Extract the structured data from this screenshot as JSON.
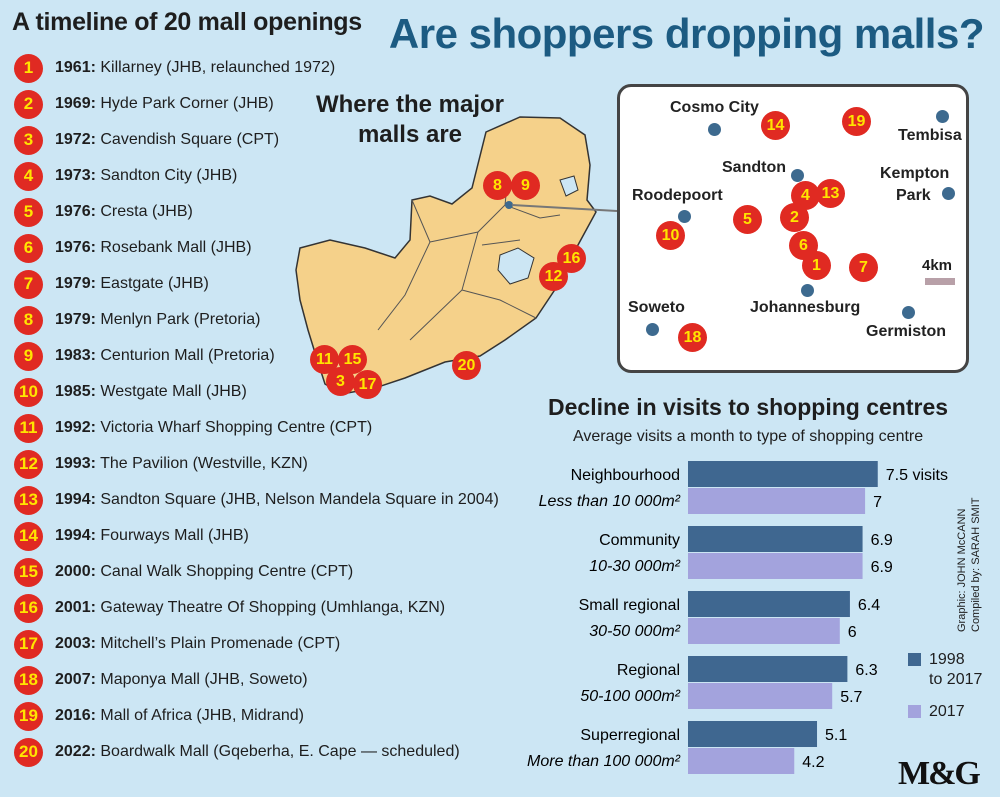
{
  "main_title": "Are shoppers dropping malls?",
  "timeline": {
    "title": "A timeline of 20 mall openings",
    "items": [
      {
        "num": "1",
        "year": "1961:",
        "name": "Killarney (JHB, relaunched 1972)"
      },
      {
        "num": "2",
        "year": "1969:",
        "name": "Hyde Park Corner (JHB)"
      },
      {
        "num": "3",
        "year": "1972:",
        "name": "Cavendish Square (CPT)"
      },
      {
        "num": "4",
        "year": "1973:",
        "name": "Sandton City (JHB)"
      },
      {
        "num": "5",
        "year": "1976:",
        "name": "Cresta (JHB)"
      },
      {
        "num": "6",
        "year": "1976:",
        "name": "Rosebank Mall (JHB)"
      },
      {
        "num": "7",
        "year": "1979:",
        "name": "Eastgate (JHB)"
      },
      {
        "num": "8",
        "year": "1979:",
        "name": "Menlyn Park (Pretoria)"
      },
      {
        "num": "9",
        "year": "1983:",
        "name": "Centurion Mall (Pretoria)"
      },
      {
        "num": "10",
        "year": "1985:",
        "name": "Westgate Mall (JHB)"
      },
      {
        "num": "11",
        "year": "1992:",
        "name": "Victoria Wharf Shopping Centre (CPT)"
      },
      {
        "num": "12",
        "year": "1993:",
        "name": "The Pavilion (Westville, KZN)"
      },
      {
        "num": "13",
        "year": "1994:",
        "name": "Sandton Square (JHB, Nelson Mandela Square in 2004)"
      },
      {
        "num": "14",
        "year": "1994:",
        "name": "Fourways Mall (JHB)"
      },
      {
        "num": "15",
        "year": "2000:",
        "name": "Canal Walk Shopping Centre (CPT)"
      },
      {
        "num": "16",
        "year": "2001:",
        "name": "Gateway Theatre Of Shopping (Umhlanga, KZN)"
      },
      {
        "num": "17",
        "year": "2003:",
        "name": "Mitchell’s Plain Promenade (CPT)"
      },
      {
        "num": "18",
        "year": "2007:",
        "name": "Maponya Mall (JHB, Soweto)"
      },
      {
        "num": "19",
        "year": "2016:",
        "name": "Mall of Africa (JHB, Midrand)"
      },
      {
        "num": "20",
        "year": "2022:",
        "name": "Boardwalk Mall (Gqeberha, E. Cape — scheduled)"
      }
    ]
  },
  "map": {
    "title_line1": "Where the major",
    "title_line2": "malls are",
    "markers": [
      "8",
      "9",
      "16",
      "12",
      "11",
      "15",
      "3",
      "17",
      "20"
    ]
  },
  "inset": {
    "cities": [
      "Cosmo City",
      "Tembisa",
      "Sandton",
      "Kempton",
      "Park",
      "Roodepoort",
      "Johannesburg",
      "Soweto",
      "Germiston"
    ],
    "markers": [
      "14",
      "19",
      "4",
      "13",
      "5",
      "2",
      "10",
      "6",
      "1",
      "7",
      "18"
    ],
    "scale": "4km"
  },
  "chart_data": {
    "type": "bar",
    "title": "Decline in visits to shopping centres",
    "subtitle": "Average visits a month to type of shopping centre",
    "categories": [
      "Neighbourhood",
      "Community",
      "Small regional",
      "Regional",
      "Superregional"
    ],
    "category_sublabels": [
      "Less than 10 000m²",
      "10-30 000m²",
      "30-50 000m²",
      "50-100 000m²",
      "More than 100 000m²"
    ],
    "series": [
      {
        "name": "1998 to 2017",
        "values": [
          7.5,
          6.9,
          6.4,
          6.3,
          5.1
        ],
        "color": "#3f6790"
      },
      {
        "name": "2017",
        "values": [
          7,
          6.9,
          6,
          5.7,
          4.2
        ],
        "color": "#a3a3dd"
      }
    ],
    "value_labels_first": [
      "7.5 visits",
      "6.9",
      "6.4",
      "6.3",
      "5.1"
    ],
    "value_labels_second": [
      "7",
      "6.9",
      "6",
      "5.7",
      "4.2"
    ],
    "legend_labels": [
      "1998",
      "to 2017",
      "2017"
    ],
    "legend_position": "bottom-right"
  },
  "credits": {
    "graphic": "Graphic: JOHN McCANN",
    "compiled": "Compiled by: SARAH SMIT"
  },
  "logo": "M&G",
  "colors": {
    "background": "#cce6f4",
    "marker": "#e02a22",
    "marker_text": "#ffe500",
    "title": "#1c5b82",
    "land": "#f5d18a"
  }
}
